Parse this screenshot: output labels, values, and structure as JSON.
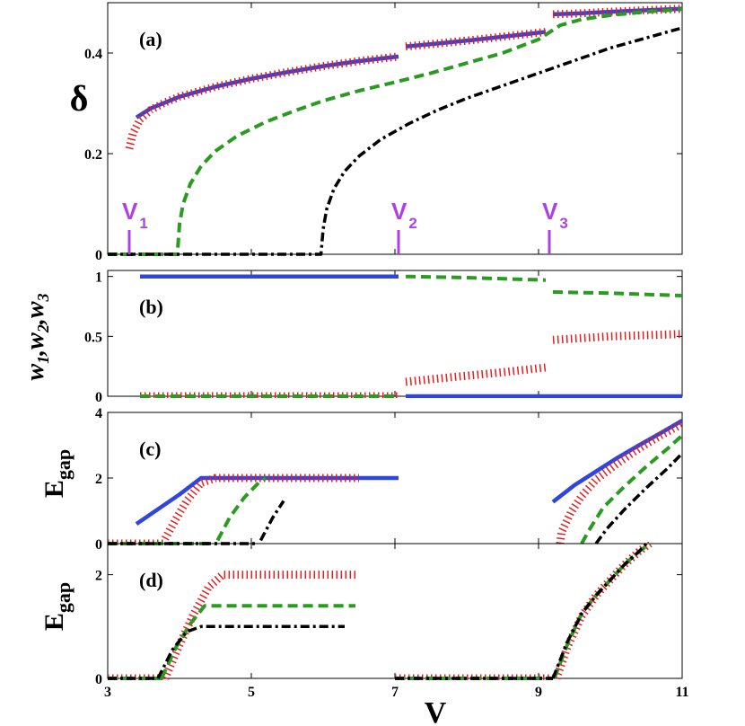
{
  "chart_data": {
    "type": "line",
    "x_axis": {
      "label": "V",
      "range": [
        3,
        11
      ],
      "ticks": [
        3,
        5,
        7,
        9,
        11
      ],
      "tick_labels": [
        "3",
        "5",
        "7",
        "9",
        "11"
      ]
    },
    "threshold_markers": [
      {
        "name": "V",
        "subscript": "1",
        "x": 3.3
      },
      {
        "name": "V",
        "subscript": "2",
        "x": 7.05
      },
      {
        "name": "V",
        "subscript": "3",
        "x": 9.15
      }
    ],
    "panels": [
      {
        "id": "a",
        "panel_label": "(a)",
        "ylabel": "δ",
        "ylim": [
          0,
          0.5
        ],
        "yticks": [
          0,
          0.2,
          0.4
        ],
        "ytick_labels": [
          "0",
          "0.2",
          "0.4"
        ],
        "series": [
          {
            "name": "blue-solid",
            "style": "solid",
            "color": "#2e45e0",
            "segments": [
              {
                "x": [
                  3.4,
                  3.6,
                  4.0,
                  4.5,
                  5.0,
                  5.5,
                  6.0,
                  6.5,
                  7.05
                ],
                "y": [
                  0.272,
                  0.29,
                  0.313,
                  0.333,
                  0.349,
                  0.362,
                  0.374,
                  0.384,
                  0.393
                ]
              },
              {
                "x": [
                  7.15,
                  7.6,
                  8.1,
                  8.6,
                  9.1
                ],
                "y": [
                  0.413,
                  0.419,
                  0.426,
                  0.434,
                  0.442
                ]
              },
              {
                "x": [
                  9.2,
                  9.6,
                  10.0,
                  10.5,
                  11.0
                ],
                "y": [
                  0.477,
                  0.479,
                  0.482,
                  0.485,
                  0.488
                ]
              }
            ]
          },
          {
            "name": "red-dotted",
            "style": "dotted",
            "color": "#e02020",
            "segments": [
              {
                "x": [
                  3.3,
                  3.35,
                  3.45,
                  3.6,
                  3.8,
                  4.0,
                  4.5,
                  5.0,
                  5.5,
                  6.0,
                  6.5,
                  7.05
                ],
                "y": [
                  0.21,
                  0.24,
                  0.268,
                  0.287,
                  0.302,
                  0.313,
                  0.333,
                  0.349,
                  0.362,
                  0.374,
                  0.384,
                  0.393
                ]
              },
              {
                "x": [
                  7.15,
                  7.6,
                  8.1,
                  8.6,
                  9.1
                ],
                "y": [
                  0.413,
                  0.419,
                  0.426,
                  0.434,
                  0.442
                ]
              },
              {
                "x": [
                  9.2,
                  9.6,
                  10.0,
                  10.5,
                  11.0
                ],
                "y": [
                  0.477,
                  0.479,
                  0.482,
                  0.485,
                  0.488
                ]
              }
            ]
          },
          {
            "name": "green-dashed",
            "style": "dashed",
            "color": "#2a9a20",
            "segments": [
              {
                "x": [
                  3.0,
                  3.97,
                  4.0,
                  4.05,
                  4.15,
                  4.3,
                  4.5,
                  4.8,
                  5.2,
                  5.6,
                  6.0,
                  6.5,
                  7.0,
                  7.5,
                  8.0,
                  8.5,
                  9.0,
                  9.3,
                  9.6,
                  10.0,
                  10.5,
                  11.0
                ],
                "y": [
                  0.0,
                  0.0,
                  0.06,
                  0.1,
                  0.14,
                  0.175,
                  0.205,
                  0.235,
                  0.263,
                  0.285,
                  0.305,
                  0.325,
                  0.342,
                  0.36,
                  0.38,
                  0.4,
                  0.427,
                  0.455,
                  0.467,
                  0.475,
                  0.482,
                  0.487
                ]
              }
            ]
          },
          {
            "name": "black-dashdot",
            "style": "dashdot",
            "color": "#000000",
            "segments": [
              {
                "x": [
                  3.0,
                  5.97,
                  6.0,
                  6.05,
                  6.15,
                  6.3,
                  6.5,
                  6.8,
                  7.2,
                  7.6,
                  8.0,
                  8.5,
                  9.0,
                  9.5,
                  10.0,
                  10.5,
                  11.0
                ],
                "y": [
                  0.0,
                  0.0,
                  0.05,
                  0.09,
                  0.13,
                  0.165,
                  0.195,
                  0.228,
                  0.26,
                  0.287,
                  0.31,
                  0.335,
                  0.36,
                  0.385,
                  0.41,
                  0.43,
                  0.45
                ]
              }
            ]
          }
        ]
      },
      {
        "id": "b",
        "panel_label": "(b)",
        "ylabel": "w1,w2,w3",
        "ylabel_parts": [
          "w",
          "1",
          ",w",
          "2",
          ",w",
          "3"
        ],
        "ylim": [
          0,
          1.05
        ],
        "yticks": [
          0,
          0.5,
          1
        ],
        "ytick_labels": [
          "0",
          "0.5",
          "1"
        ],
        "series": [
          {
            "name": "blue-solid",
            "style": "solid",
            "color": "#2e45e0",
            "segments": [
              {
                "x": [
                  3.45,
                  7.05
                ],
                "y": [
                  1.0,
                  1.0
                ]
              },
              {
                "x": [
                  7.15,
                  11.0
                ],
                "y": [
                  0.0,
                  0.0
                ]
              }
            ]
          },
          {
            "name": "red-dotted",
            "style": "dotted",
            "color": "#e02020",
            "segments": [
              {
                "x": [
                  3.45,
                  7.05
                ],
                "y": [
                  0.0,
                  0.0
                ]
              },
              {
                "x": [
                  7.15,
                  7.8,
                  8.5,
                  9.1
                ],
                "y": [
                  0.12,
                  0.16,
                  0.2,
                  0.24
                ]
              },
              {
                "x": [
                  9.2,
                  10.0,
                  11.0
                ],
                "y": [
                  0.47,
                  0.5,
                  0.52
                ]
              }
            ]
          },
          {
            "name": "green-dashed",
            "style": "dashed",
            "color": "#2a9a20",
            "segments": [
              {
                "x": [
                  3.45,
                  7.05
                ],
                "y": [
                  0.0,
                  0.0
                ]
              },
              {
                "x": [
                  7.15,
                  8.0,
                  9.1
                ],
                "y": [
                  1.0,
                  0.99,
                  0.97
                ]
              },
              {
                "x": [
                  9.2,
                  10.0,
                  11.0
                ],
                "y": [
                  0.87,
                  0.86,
                  0.84
                ]
              }
            ]
          }
        ]
      },
      {
        "id": "c",
        "panel_label": "(c)",
        "ylabel": "E",
        "ylabel_sub": "gap",
        "ylim": [
          0,
          4
        ],
        "yticks": [
          0,
          2,
          4
        ],
        "ytick_labels": [
          "0",
          "2",
          "4"
        ],
        "series": [
          {
            "name": "blue-solid",
            "style": "solid",
            "color": "#2e45e0",
            "segments": [
              {
                "x": [
                  3.4,
                  3.7,
                  4.0,
                  4.3,
                  4.6,
                  5.0,
                  6.0,
                  7.05
                ],
                "y": [
                  0.6,
                  1.05,
                  1.5,
                  2.0,
                  2.0,
                  2.0,
                  2.0,
                  2.0
                ]
              },
              {
                "x": [
                  9.2,
                  9.5,
                  9.8,
                  10.1,
                  10.4,
                  10.7,
                  11.0
                ],
                "y": [
                  1.27,
                  1.78,
                  2.2,
                  2.62,
                  3.0,
                  3.37,
                  3.75
                ]
              }
            ]
          },
          {
            "name": "red-dotted",
            "style": "dotted",
            "color": "#e02020",
            "segments": [
              {
                "x": [
                  3.0,
                  3.78
                ],
                "y": [
                  0.0,
                  0.0
                ]
              },
              {
                "x": [
                  3.8,
                  3.95,
                  4.1,
                  4.3,
                  4.5,
                  5.0,
                  6.0,
                  6.5
                ],
                "y": [
                  0.15,
                  0.75,
                  1.3,
                  1.85,
                  2.0,
                  2.0,
                  2.0,
                  2.0
                ]
              },
              {
                "x": [
                  9.3,
                  9.32,
                  9.45,
                  9.6,
                  9.8,
                  10.1,
                  10.4,
                  10.7,
                  11.0
                ],
                "y": [
                  0.0,
                  0.35,
                  0.95,
                  1.45,
                  1.95,
                  2.45,
                  2.9,
                  3.3,
                  3.65
                ]
              }
            ]
          },
          {
            "name": "green-dashed",
            "style": "dashed",
            "color": "#2a9a20",
            "segments": [
              {
                "x": [
                  3.0,
                  4.5
                ],
                "y": [
                  0.0,
                  0.0
                ]
              },
              {
                "x": [
                  4.53,
                  4.7,
                  4.9,
                  5.1,
                  5.2
                ],
                "y": [
                  0.1,
                  0.8,
                  1.4,
                  1.85,
                  2.0
                ]
              },
              {
                "x": [
                  9.6,
                  9.7,
                  9.9,
                  10.2,
                  10.5,
                  10.8,
                  11.0
                ],
                "y": [
                  0.0,
                  0.4,
                  1.1,
                  1.75,
                  2.35,
                  2.9,
                  3.3
                ]
              }
            ]
          },
          {
            "name": "black-dashdot",
            "style": "dashdot",
            "color": "#000000",
            "segments": [
              {
                "x": [
                  3.0,
                  5.1
                ],
                "y": [
                  0.0,
                  0.0
                ]
              },
              {
                "x": [
                  5.13,
                  5.3,
                  5.45
                ],
                "y": [
                  0.1,
                  0.8,
                  1.3
                ]
              },
              {
                "x": [
                  9.8,
                  9.95,
                  10.2,
                  10.5,
                  10.8,
                  11.0
                ],
                "y": [
                  0.0,
                  0.45,
                  1.05,
                  1.7,
                  2.3,
                  2.75
                ]
              }
            ]
          }
        ]
      },
      {
        "id": "d",
        "panel_label": "(d)",
        "ylabel": "E",
        "ylabel_sub": "gap",
        "ylim": [
          0,
          2.6
        ],
        "yticks": [
          0,
          2
        ],
        "ytick_labels": [
          "0",
          "2"
        ],
        "series": [
          {
            "name": "red-dotted",
            "style": "dotted",
            "color": "#e02020",
            "segments": [
              {
                "x": [
                  3.0,
                  3.8
                ],
                "y": [
                  0.0,
                  0.0
                ]
              },
              {
                "x": [
                  3.8,
                  4.0,
                  4.2,
                  4.4,
                  4.6,
                  5.0,
                  5.5,
                  6.0,
                  6.45
                ],
                "y": [
                  0.0,
                  0.65,
                  1.25,
                  1.75,
                  2.0,
                  2.0,
                  2.0,
                  2.0,
                  2.0
                ]
              },
              {
                "x": [
                  7.0,
                  9.2
                ],
                "y": [
                  0.0,
                  0.0
                ]
              },
              {
                "x": [
                  9.25,
                  9.4,
                  9.6,
                  9.8,
                  10.0,
                  10.2,
                  10.4,
                  10.55
                ],
                "y": [
                  0.0,
                  0.6,
                  1.2,
                  1.6,
                  1.9,
                  2.2,
                  2.45,
                  2.6
                ]
              }
            ]
          },
          {
            "name": "green-dashed",
            "style": "dashed",
            "color": "#2a9a20",
            "segments": [
              {
                "x": [
                  3.0,
                  3.75
                ],
                "y": [
                  0.0,
                  0.0
                ]
              },
              {
                "x": [
                  3.75,
                  3.95,
                  4.15,
                  4.35,
                  4.6,
                  5.0,
                  5.5,
                  6.0,
                  6.45
                ],
                "y": [
                  0.0,
                  0.6,
                  1.05,
                  1.4,
                  1.4,
                  1.4,
                  1.4,
                  1.4,
                  1.4
                ]
              },
              {
                "x": [
                  7.0,
                  9.2
                ],
                "y": [
                  0.0,
                  0.0
                ]
              },
              {
                "x": [
                  9.22,
                  9.4,
                  9.6,
                  9.8,
                  10.0,
                  10.2,
                  10.4,
                  10.55
                ],
                "y": [
                  0.0,
                  0.65,
                  1.25,
                  1.6,
                  1.9,
                  2.2,
                  2.45,
                  2.6
                ]
              }
            ]
          },
          {
            "name": "black-dashdot",
            "style": "dashdot",
            "color": "#000000",
            "segments": [
              {
                "x": [
                  3.0,
                  3.7
                ],
                "y": [
                  0.0,
                  0.0
                ]
              },
              {
                "x": [
                  3.7,
                  3.9,
                  4.1,
                  4.3,
                  4.6,
                  5.0,
                  5.5,
                  6.0,
                  6.3
                ],
                "y": [
                  0.0,
                  0.55,
                  0.9,
                  1.0,
                  1.0,
                  1.0,
                  1.0,
                  1.0,
                  1.0
                ]
              },
              {
                "x": [
                  7.0,
                  9.2
                ],
                "y": [
                  0.0,
                  0.0
                ]
              },
              {
                "x": [
                  9.2,
                  9.4,
                  9.6,
                  9.8,
                  10.0,
                  10.2,
                  10.4,
                  10.5
                ],
                "y": [
                  0.0,
                  0.7,
                  1.25,
                  1.6,
                  1.9,
                  2.2,
                  2.45,
                  2.6
                ]
              }
            ]
          }
        ]
      }
    ]
  }
}
